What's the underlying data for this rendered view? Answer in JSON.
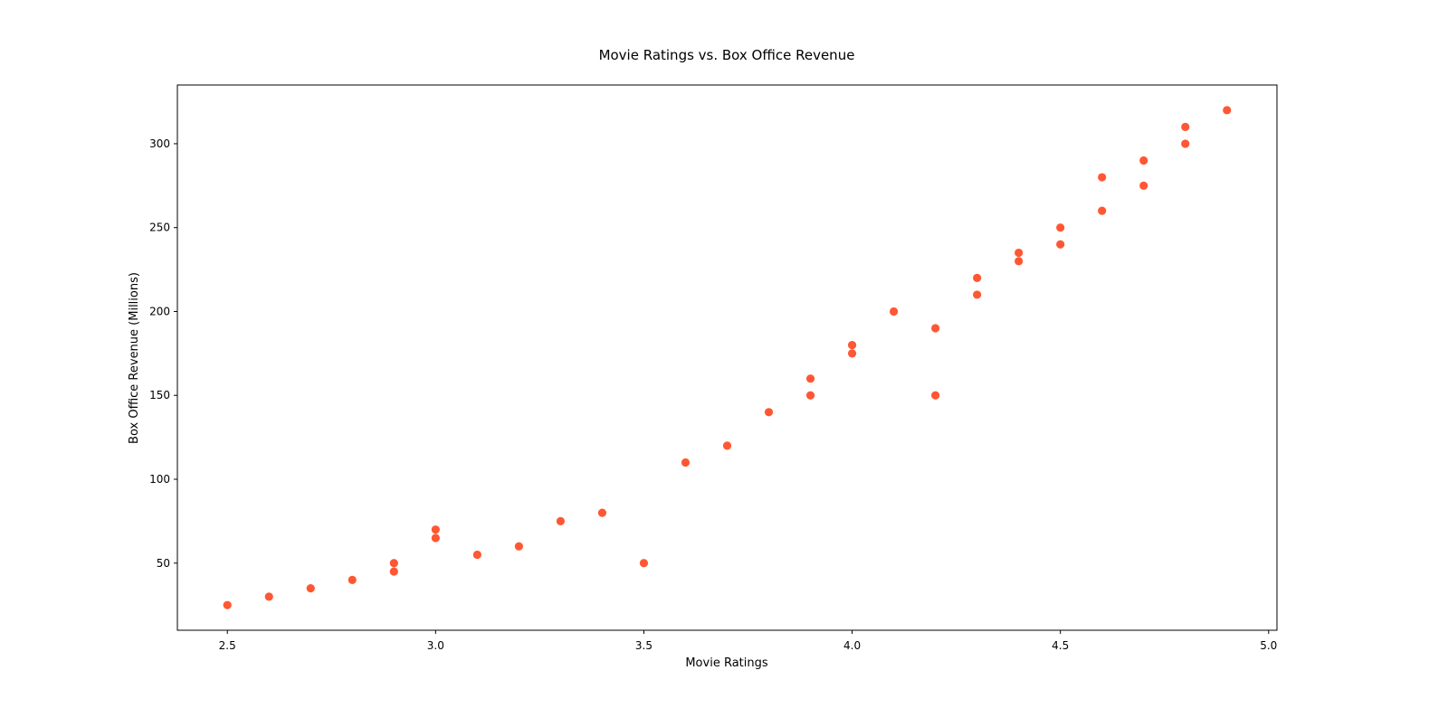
{
  "chart_data": {
    "type": "scatter",
    "title": "Movie Ratings vs. Box Office Revenue",
    "xlabel": "Movie Ratings",
    "ylabel": "Box Office Revenue (Millions)",
    "xlim": [
      2.38,
      5.02
    ],
    "ylim": [
      10,
      335
    ],
    "xticks": [
      2.5,
      3.0,
      3.5,
      4.0,
      4.5,
      5.0
    ],
    "xtick_labels": [
      "2.5",
      "3.0",
      "3.5",
      "4.0",
      "4.5",
      "5.0"
    ],
    "yticks": [
      50,
      100,
      150,
      200,
      250,
      300
    ],
    "ytick_labels": [
      "50",
      "100",
      "150",
      "200",
      "250",
      "300"
    ],
    "grid": false,
    "marker_color": "#ff5733",
    "points": [
      {
        "x": 2.5,
        "y": 25
      },
      {
        "x": 2.6,
        "y": 30
      },
      {
        "x": 2.7,
        "y": 35
      },
      {
        "x": 2.8,
        "y": 40
      },
      {
        "x": 2.9,
        "y": 45
      },
      {
        "x": 2.9,
        "y": 50
      },
      {
        "x": 3.0,
        "y": 65
      },
      {
        "x": 3.0,
        "y": 70
      },
      {
        "x": 3.1,
        "y": 55
      },
      {
        "x": 3.2,
        "y": 60
      },
      {
        "x": 3.3,
        "y": 75
      },
      {
        "x": 3.4,
        "y": 80
      },
      {
        "x": 3.5,
        "y": 50
      },
      {
        "x": 3.6,
        "y": 110
      },
      {
        "x": 3.7,
        "y": 120
      },
      {
        "x": 3.8,
        "y": 140
      },
      {
        "x": 3.9,
        "y": 150
      },
      {
        "x": 3.9,
        "y": 160
      },
      {
        "x": 4.0,
        "y": 175
      },
      {
        "x": 4.0,
        "y": 180
      },
      {
        "x": 4.1,
        "y": 200
      },
      {
        "x": 4.2,
        "y": 150
      },
      {
        "x": 4.2,
        "y": 190
      },
      {
        "x": 4.3,
        "y": 210
      },
      {
        "x": 4.3,
        "y": 220
      },
      {
        "x": 4.4,
        "y": 230
      },
      {
        "x": 4.4,
        "y": 235
      },
      {
        "x": 4.5,
        "y": 240
      },
      {
        "x": 4.5,
        "y": 250
      },
      {
        "x": 4.6,
        "y": 260
      },
      {
        "x": 4.6,
        "y": 280
      },
      {
        "x": 4.7,
        "y": 275
      },
      {
        "x": 4.7,
        "y": 290
      },
      {
        "x": 4.8,
        "y": 300
      },
      {
        "x": 4.8,
        "y": 310
      },
      {
        "x": 4.9,
        "y": 320
      }
    ]
  }
}
